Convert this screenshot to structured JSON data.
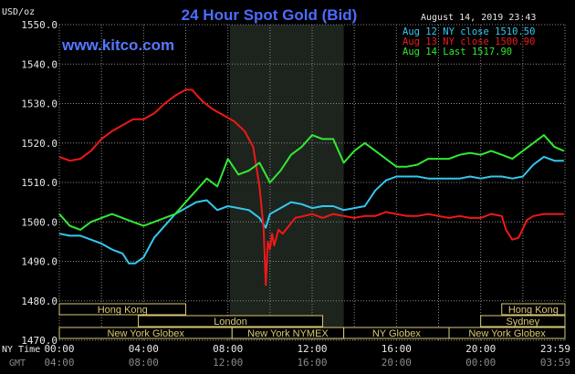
{
  "chart_data": {
    "type": "line",
    "title": "24 Hour Spot Gold (Bid)",
    "source": "www.kitco.com",
    "timestamp": "August 14, 2019 23:43",
    "ylabel": "USD/oz",
    "ylim": [
      1470,
      1550
    ],
    "y_ticks": [
      "1550.0",
      "1540.0",
      "1530.0",
      "1520.0",
      "1510.0",
      "1500.0",
      "1490.0",
      "1480.0",
      "1470.0"
    ],
    "x_row_labels": [
      "NY Time",
      "GMT"
    ],
    "x_ticks_ny": [
      "00:00",
      "04:00",
      "08:00",
      "12:00",
      "16:00",
      "20:00",
      "23:59"
    ],
    "x_ticks_gmt": [
      "04:00",
      "08:00",
      "12:00",
      "16:00",
      "20:00",
      "00:00",
      "03:59"
    ],
    "grid": true,
    "highlight": {
      "start": 8.1,
      "end": 13.5
    },
    "sessions": [
      {
        "label": "Hong Kong",
        "start": 0,
        "end": 6.0,
        "row": 0
      },
      {
        "label": "London",
        "start": 3.75,
        "end": 12.5,
        "row": 1
      },
      {
        "label": "New York Globex",
        "start": 0,
        "end": 8.2,
        "row": 2
      },
      {
        "label": "New York NYMEX",
        "start": 8.2,
        "end": 13.5,
        "row": 2
      },
      {
        "label": "NY Globex",
        "start": 13.5,
        "end": 18.5,
        "row": 2
      },
      {
        "label": "Hong Kong",
        "start": 21.0,
        "end": 24,
        "row": 0
      },
      {
        "label": "Sydney",
        "start": 20.0,
        "end": 24,
        "row": 1
      },
      {
        "label": "New York Globex",
        "start": 18.5,
        "end": 24,
        "row": 2
      }
    ],
    "series": [
      {
        "name": "Aug 12 NY close 1510.50",
        "color": "#33c8f0",
        "x": [
          0,
          0.5,
          1,
          1.5,
          2,
          2.5,
          3,
          3.3,
          3.6,
          4,
          4.5,
          5,
          5.5,
          6,
          6.5,
          7,
          7.5,
          8,
          8.5,
          9,
          9.5,
          9.8,
          10,
          10.5,
          11,
          11.5,
          12,
          12.5,
          13,
          13.5,
          14,
          14.5,
          15,
          15.5,
          16,
          16.5,
          17,
          17.5,
          18,
          18.5,
          19,
          19.5,
          20,
          20.5,
          21,
          21.5,
          22,
          22.5,
          23,
          23.5,
          23.95
        ],
        "values": [
          1497,
          1496.5,
          1496.5,
          1495.5,
          1494.5,
          1493,
          1492,
          1489.5,
          1489.5,
          1491,
          1496,
          1499,
          1502,
          1503.5,
          1505,
          1505.5,
          1503,
          1504,
          1503.5,
          1503,
          1501,
          1498.5,
          1502,
          1503.5,
          1505,
          1504.5,
          1503.5,
          1504,
          1504,
          1503,
          1503.5,
          1504,
          1508,
          1510.5,
          1511.5,
          1511.5,
          1511.5,
          1511,
          1511,
          1511,
          1511,
          1511.5,
          1511,
          1511.5,
          1511.5,
          1511,
          1511.5,
          1514.5,
          1516.5,
          1515.5,
          1515.5
        ]
      },
      {
        "name": "Aug 13 NY close 1500.90",
        "color": "#f01818",
        "x": [
          0,
          0.5,
          1,
          1.5,
          2,
          2.5,
          3,
          3.5,
          4,
          4.5,
          5,
          5.5,
          6,
          6.3,
          6.8,
          7.3,
          7.8,
          8.3,
          8.8,
          9.2,
          9.5,
          9.7,
          9.8,
          9.9,
          10.0,
          10.1,
          10.2,
          10.4,
          10.6,
          10.9,
          11.2,
          11.6,
          12,
          12.5,
          13,
          13.5,
          14,
          14.5,
          15,
          15.5,
          16,
          16.5,
          17,
          17.5,
          18,
          18.5,
          19,
          19.5,
          20,
          20.5,
          21,
          21.2,
          21.5,
          21.8,
          22.2,
          22.5,
          23,
          23.5,
          23.95
        ],
        "values": [
          1516.5,
          1515.5,
          1516,
          1518,
          1521,
          1523,
          1524.5,
          1526,
          1526,
          1527.5,
          1530,
          1532,
          1533.5,
          1533.5,
          1530.5,
          1528.5,
          1527,
          1525.5,
          1523,
          1519,
          1509,
          1498,
          1484,
          1495,
          1493,
          1497,
          1494,
          1498,
          1497,
          1499,
          1501,
          1501.5,
          1502,
          1501,
          1502,
          1501.5,
          1501,
          1501.5,
          1501.5,
          1502.5,
          1502,
          1501.5,
          1501.5,
          1502,
          1501.5,
          1501,
          1501.5,
          1501,
          1501,
          1502,
          1501.5,
          1498,
          1495.5,
          1496,
          1500.5,
          1501.5,
          1502,
          1502,
          1502
        ]
      },
      {
        "name": "Aug 14 Last 1517.90",
        "color": "#33e833",
        "x": [
          0,
          0.5,
          1,
          1.5,
          2,
          2.5,
          3,
          3.5,
          4,
          4.5,
          5,
          5.5,
          6,
          6.5,
          7,
          7.5,
          8,
          8.5,
          9,
          9.5,
          10,
          10.5,
          11,
          11.5,
          12,
          12.5,
          13,
          13.5,
          14,
          14.5,
          15,
          15.5,
          16,
          16.5,
          17,
          17.5,
          18,
          18.5,
          19,
          19.5,
          20,
          20.5,
          21,
          21.5,
          22,
          22.5,
          23,
          23.5,
          23.95
        ],
        "values": [
          1502,
          1499,
          1498,
          1500,
          1501,
          1502,
          1501,
          1500,
          1499,
          1500,
          1501,
          1502,
          1505,
          1508,
          1511,
          1509,
          1516,
          1512,
          1513,
          1515,
          1510,
          1513,
          1517,
          1519,
          1522,
          1521,
          1521,
          1515,
          1518,
          1520,
          1518,
          1516,
          1514,
          1514,
          1514.5,
          1516,
          1516,
          1516,
          1517,
          1517.5,
          1517,
          1518,
          1517,
          1516,
          1518,
          1520,
          1522,
          1519,
          1518
        ]
      }
    ]
  }
}
